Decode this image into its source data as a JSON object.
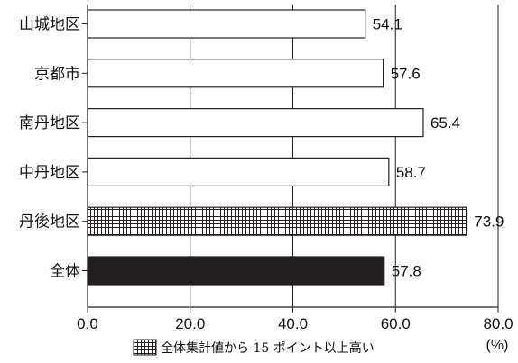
{
  "chart_data": {
    "type": "bar",
    "orientation": "horizontal",
    "categories": [
      "山城地区",
      "京都市",
      "南丹地区",
      "中丹地区",
      "丹後地区",
      "全体"
    ],
    "values": [
      54.1,
      57.6,
      65.4,
      58.7,
      73.9,
      57.8
    ],
    "value_labels": [
      "54.1",
      "57.6",
      "65.4",
      "58.7",
      "73.9",
      "57.8"
    ],
    "bar_styles": [
      "plain",
      "plain",
      "plain",
      "plain",
      "hatched",
      "total"
    ],
    "xlim": [
      0,
      80
    ],
    "x_ticks": [
      "0.0",
      "20.0",
      "40.0",
      "60.0",
      "80.0"
    ],
    "x_unit": "(%)",
    "grid": "vertical",
    "legend": {
      "text": "全体集計値から 15 ポイント以上高い",
      "style": "hatched",
      "placement": "bottom-center"
    }
  },
  "colors": {
    "plain_fill": "#ffffff",
    "total_fill": "#231f20",
    "hatch_line": "#231f20",
    "axis": "#231f20",
    "grid": "#231f20"
  }
}
